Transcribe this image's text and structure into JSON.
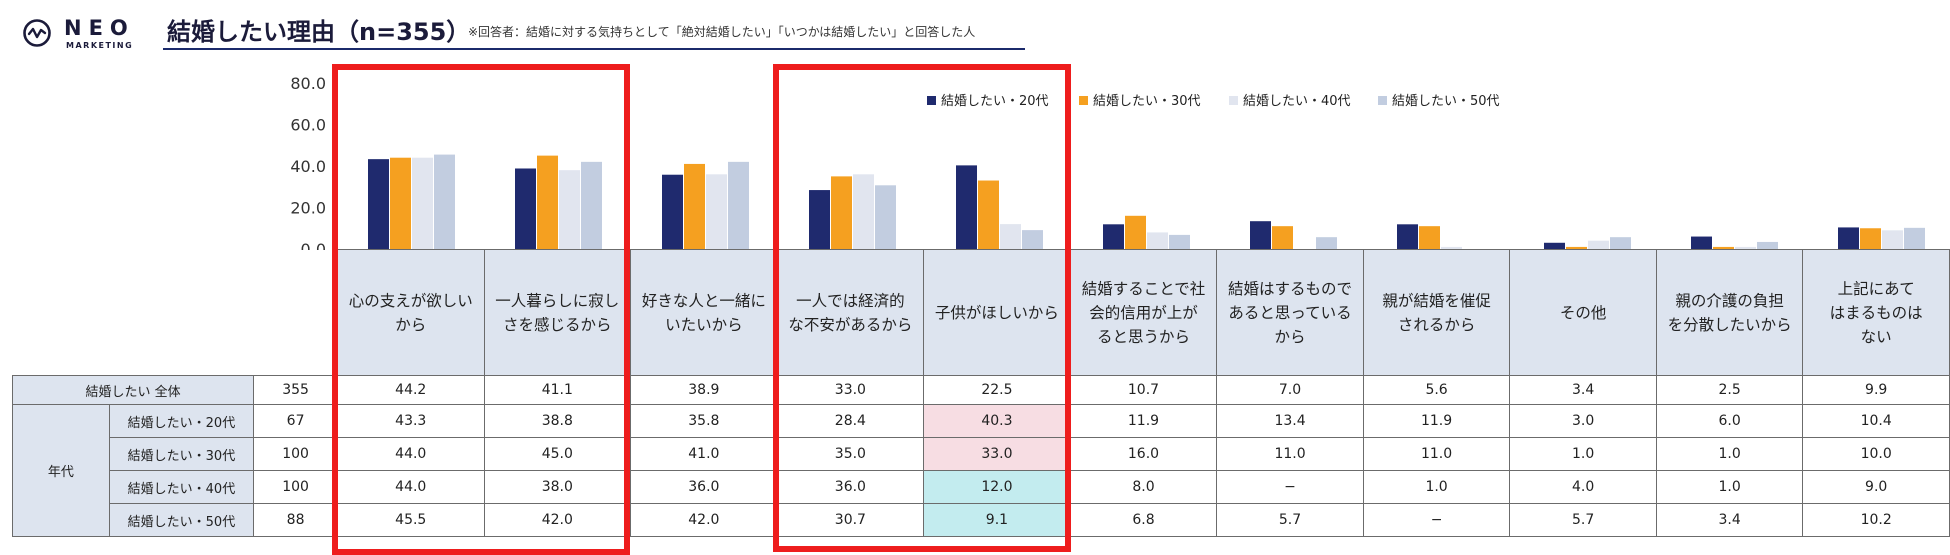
{
  "brand": {
    "name": "NEO",
    "sub": "MARKETING"
  },
  "title": "結婚したい理由（n=355）",
  "note": "※回答者：結婚に対する気持ちとして「絶対結婚したい」「いつかは結婚したい」と回答した人",
  "colors": {
    "s20": "#1f2a6e",
    "s30": "#f5a020",
    "s40": "#e1e5ef",
    "s50": "#c2cde0",
    "highlight_box": "#ee1d1d",
    "cell_pink": "#f7dde3",
    "cell_cyan": "#c3ecef"
  },
  "chart_data": {
    "type": "bar",
    "y_ticks": [
      "80.0",
      "60.0",
      "40.0",
      "20.0",
      "0.0"
    ],
    "ylim": [
      0,
      80
    ],
    "legend_position": "top-right",
    "categories": [
      "心の支えが欲しいから",
      "一人暮らしに寂しさを感じるから",
      "好きな人と一緒にいたいから",
      "一人では経済的な不安があるから",
      "子供がほしいから",
      "結婚することで社会的信用が上がると思うから",
      "結婚はするものであると思っているから",
      "親が結婚を催促されるから",
      "その他",
      "親の介護の負担を分散したいから",
      "上記にあてはまるものはない"
    ],
    "series": [
      {
        "name": "結婚したい・20代",
        "values": [
          43.3,
          38.8,
          35.8,
          28.4,
          40.3,
          11.9,
          13.4,
          11.9,
          3.0,
          6.0,
          10.4
        ]
      },
      {
        "name": "結婚したい・30代",
        "values": [
          44.0,
          45.0,
          41.0,
          35.0,
          33.0,
          16.0,
          11.0,
          11.0,
          1.0,
          1.0,
          10.0
        ]
      },
      {
        "name": "結婚したい・40代",
        "values": [
          44.0,
          38.0,
          36.0,
          36.0,
          12.0,
          8.0,
          0,
          1.0,
          4.0,
          1.0,
          9.0
        ]
      },
      {
        "name": "結婚したい・50代",
        "values": [
          45.5,
          42.0,
          42.0,
          30.7,
          9.1,
          6.8,
          5.7,
          0,
          5.7,
          3.4,
          10.2
        ]
      }
    ]
  },
  "table": {
    "headers": [
      "心の支えが欲しい\nから",
      "一人暮らしに寂し\nさを感じるから",
      "好きな人と一緒に\nいたいから",
      "一人では経済的\nな不安があるから",
      "子供がほしいから",
      "結婚することで社\n会的信用が上が\nると思うから",
      "結婚はするもので\nあると思っている\nから",
      "親が結婚を催促\nされるから",
      "その他",
      "親の介護の負担\nを分散したいから",
      "上記にあて\nはまるものは\nない"
    ],
    "total": {
      "label": "結婚したい 全体",
      "n": "355",
      "values": [
        "44.2",
        "41.1",
        "38.9",
        "33.0",
        "22.5",
        "10.7",
        "7.0",
        "5.6",
        "3.4",
        "2.5",
        "9.9"
      ]
    },
    "group_label": "年代",
    "rows": [
      {
        "label": "結婚したい・20代",
        "n": "67",
        "values": [
          "43.3",
          "38.8",
          "35.8",
          "28.4",
          "40.3",
          "11.9",
          "13.4",
          "11.9",
          "3.0",
          "6.0",
          "10.4"
        ]
      },
      {
        "label": "結婚したい・30代",
        "n": "100",
        "values": [
          "44.0",
          "45.0",
          "41.0",
          "35.0",
          "33.0",
          "16.0",
          "11.0",
          "11.0",
          "1.0",
          "1.0",
          "10.0"
        ]
      },
      {
        "label": "結婚したい・40代",
        "n": "100",
        "values": [
          "44.0",
          "38.0",
          "36.0",
          "36.0",
          "12.0",
          "8.0",
          "−",
          "1.0",
          "4.0",
          "1.0",
          "9.0"
        ]
      },
      {
        "label": "結婚したい・50代",
        "n": "88",
        "values": [
          "45.5",
          "42.0",
          "42.0",
          "30.7",
          "9.1",
          "6.8",
          "5.7",
          "−",
          "5.7",
          "3.4",
          "10.2"
        ]
      }
    ],
    "highlights": {
      "pink": [
        [
          0,
          4
        ],
        [
          1,
          4
        ]
      ],
      "cyan": [
        [
          2,
          4
        ],
        [
          3,
          4
        ]
      ]
    }
  }
}
